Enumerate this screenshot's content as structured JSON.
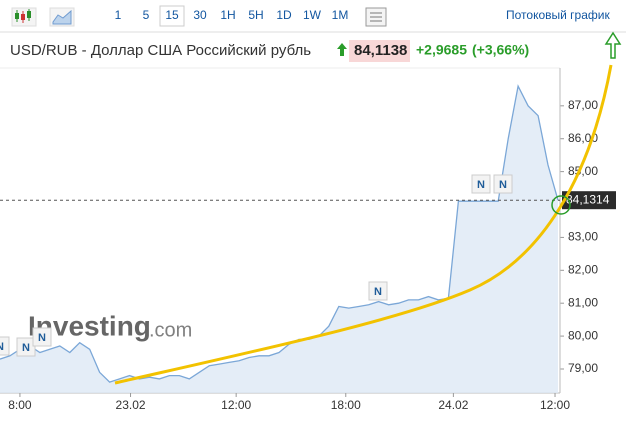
{
  "toolbar": {
    "intervals": [
      "1",
      "5",
      "15",
      "30",
      "1H",
      "5H",
      "1D",
      "1W",
      "1M"
    ],
    "active": 2,
    "stream_link": "Потоковый график"
  },
  "header": {
    "title": "USD/RUB - Доллар США Российский рубль",
    "price": "84,1138",
    "change": "+2,9685",
    "change_percent": "(+3,66%)"
  },
  "watermark": {
    "brand": "Investing",
    "suffix": ".com"
  },
  "news_markers": [
    "N",
    "N",
    "N",
    "N",
    "N",
    "N"
  ],
  "chart_data": {
    "type": "area",
    "x": [
      0,
      1,
      2,
      3,
      4,
      5,
      6,
      7,
      8,
      9,
      10,
      11,
      12,
      13,
      14,
      15,
      16,
      17,
      18,
      19,
      20,
      21,
      22,
      23,
      24,
      25,
      26,
      27,
      28,
      29,
      30,
      31,
      32,
      33,
      34,
      35,
      36,
      37,
      38,
      39,
      40,
      41,
      42,
      43,
      44,
      45,
      46,
      47,
      48,
      49,
      50,
      51,
      52,
      53,
      54,
      55,
      56
    ],
    "series": [
      {
        "name": "USD/RUB",
        "color": "#7ba7d7",
        "values": [
          79.3,
          79.4,
          79.6,
          79.7,
          79.5,
          79.6,
          79.7,
          79.5,
          79.8,
          79.6,
          78.9,
          78.6,
          78.7,
          78.8,
          78.7,
          78.75,
          78.7,
          78.8,
          78.8,
          78.7,
          78.9,
          79.1,
          79.15,
          79.2,
          79.25,
          79.35,
          79.4,
          79.4,
          79.5,
          79.75,
          79.9,
          79.9,
          80.0,
          80.3,
          80.9,
          80.85,
          80.9,
          80.95,
          81.05,
          80.95,
          81.0,
          81.1,
          81.1,
          81.2,
          81.1,
          81.15,
          84.1,
          84.1,
          84.1,
          84.1,
          84.1,
          86.0,
          87.6,
          87.0,
          86.7,
          85.2,
          84.1314
        ]
      }
    ],
    "xlim": [
      0,
      56.2
    ],
    "xticks": [
      {
        "value": 2,
        "label": "8:00"
      },
      {
        "value": 13.1,
        "label": "23.02"
      },
      {
        "value": 23.7,
        "label": "12:00"
      },
      {
        "value": 34.7,
        "label": "18:00"
      },
      {
        "value": 45.5,
        "label": "24.02"
      },
      {
        "value": 55.7,
        "label": "12:00"
      }
    ],
    "ylim": [
      78.27,
      88.15
    ],
    "yticks": [
      {
        "value": 79,
        "label": "79,00"
      },
      {
        "value": 80,
        "label": "80,00"
      },
      {
        "value": 81,
        "label": "81,00"
      },
      {
        "value": 82,
        "label": "82,00"
      },
      {
        "value": 83,
        "label": "83,00"
      },
      {
        "value": 85,
        "label": "85,00"
      },
      {
        "value": 86,
        "label": "86,00"
      },
      {
        "value": 87,
        "label": "87,00"
      }
    ],
    "last_value": {
      "value": 84.1314,
      "label": "84,1314"
    }
  }
}
